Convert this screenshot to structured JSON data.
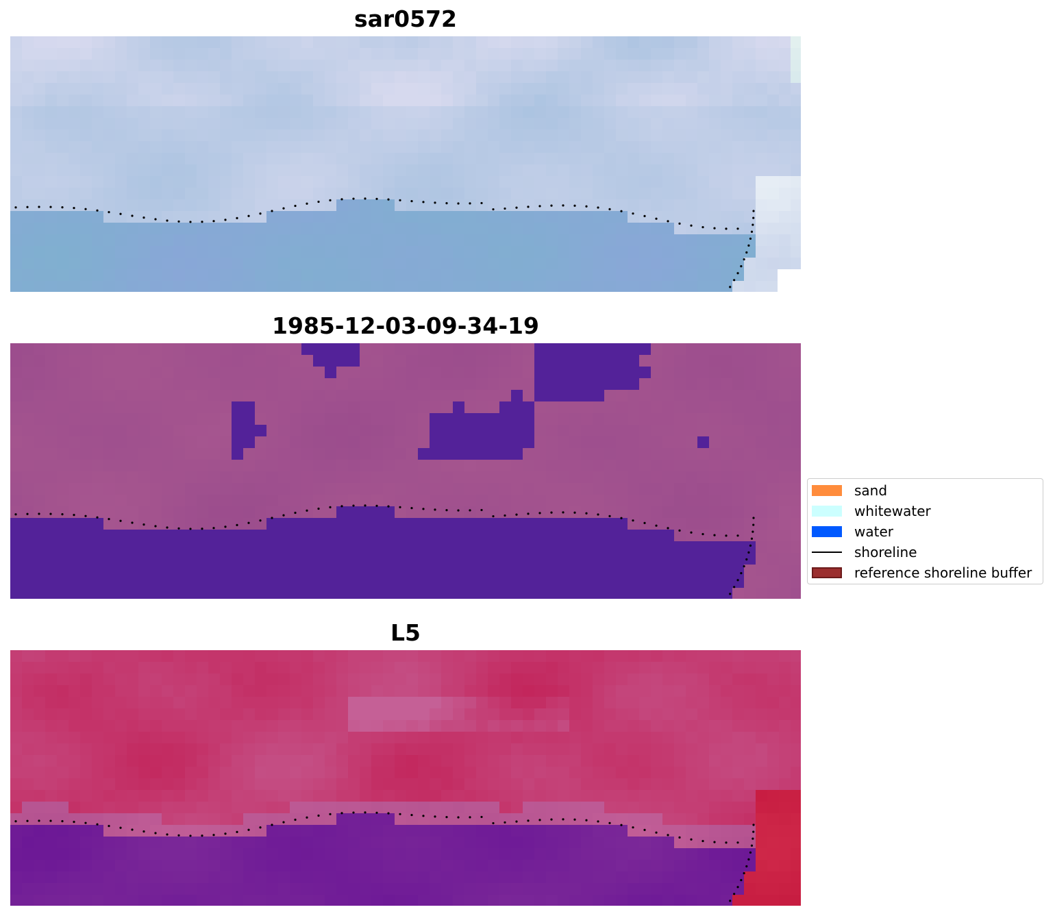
{
  "panels": [
    {
      "title": "sar0572",
      "variant": "sar",
      "description_colors": [
        "#9fbfd9",
        "#86b7cf",
        "#c8d6e6"
      ]
    },
    {
      "title": "1985-12-03-09-34-19",
      "variant": "class",
      "description_colors": [
        "#532299",
        "#a0508f"
      ]
    },
    {
      "title": "L5",
      "variant": "l5",
      "description_colors": [
        "#c8235a",
        "#6a1696"
      ]
    }
  ],
  "legend": [
    {
      "label": "sand",
      "color": "#ff8c3c",
      "kind": "patch"
    },
    {
      "label": "whitewater",
      "color": "#ccffff",
      "kind": "patch"
    },
    {
      "label": "water",
      "color": "#0059ff",
      "kind": "patch"
    },
    {
      "label": "shoreline",
      "color": "#000000",
      "kind": "line"
    },
    {
      "label": "reference shoreline buffer",
      "color": "#9b2e2e",
      "kind": "patch",
      "edge": "#6b1a1a"
    }
  ]
}
